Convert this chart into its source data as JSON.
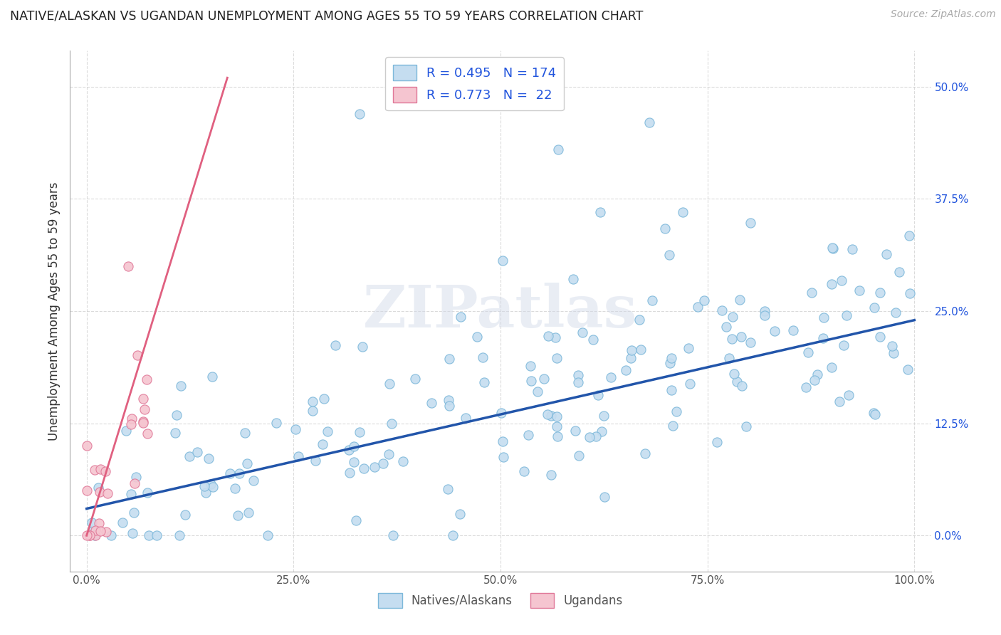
{
  "title": "NATIVE/ALASKAN VS UGANDAN UNEMPLOYMENT AMONG AGES 55 TO 59 YEARS CORRELATION CHART",
  "source": "Source: ZipAtlas.com",
  "ylabel": "Unemployment Among Ages 55 to 59 years",
  "xlim": [
    -0.02,
    1.02
  ],
  "ylim": [
    -0.04,
    0.54
  ],
  "x_ticks": [
    0.0,
    0.25,
    0.5,
    0.75,
    1.0
  ],
  "x_tick_labels": [
    "0.0%",
    "25.0%",
    "50.0%",
    "75.0%",
    "100.0%"
  ],
  "y_ticks": [
    0.0,
    0.125,
    0.25,
    0.375,
    0.5
  ],
  "y_tick_labels": [
    "0.0%",
    "12.5%",
    "25.0%",
    "37.5%",
    "50.0%"
  ],
  "native_color": "#c5ddf0",
  "native_edge_color": "#7db8da",
  "ugandan_color": "#f5c5d0",
  "ugandan_edge_color": "#e07898",
  "native_line_color": "#2255aa",
  "ugandan_line_color": "#e06080",
  "R_native": 0.495,
  "N_native": 174,
  "R_ugandan": 0.773,
  "N_ugandan": 22,
  "watermark": "ZIPatlas",
  "legend_R_color": "#2255dd",
  "legend_N_color": "#2255dd",
  "y_tick_color": "#2255dd"
}
